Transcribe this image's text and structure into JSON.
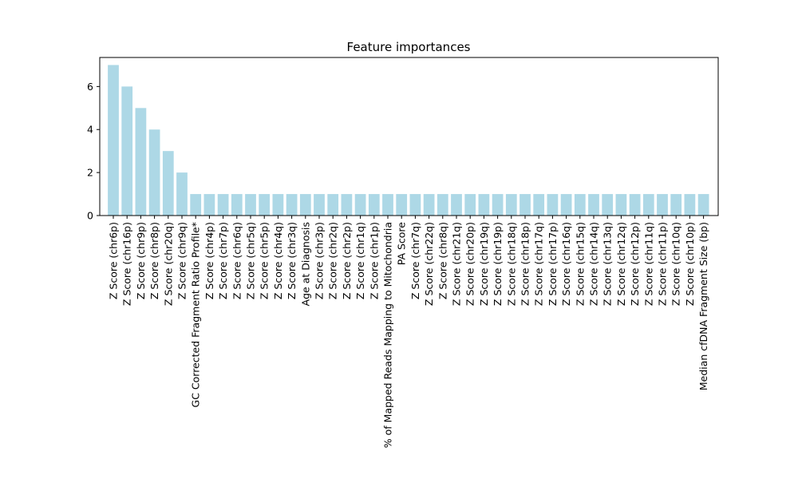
{
  "chart_data": {
    "type": "bar",
    "title": "Feature importances",
    "xlabel": "",
    "ylabel": "",
    "ylim": [
      0,
      7.35
    ],
    "yticks": [
      0,
      2,
      4,
      6
    ],
    "grid": false,
    "bar_color": "#add8e6",
    "categories": [
      "Z Score (chr6p)",
      "Z Score (chr16p)",
      "Z Score (chr9p)",
      "Z Score (chr8p)",
      "Z Score (chr20q)",
      "Z Score (chr9q)",
      "GC Corrected Fragment Ratio Profile*",
      "Z Score (chr4p)",
      "Z Score (chr7p)",
      "Z Score (chr6q)",
      "Z Score (chr5q)",
      "Z Score (chr5p)",
      "Z Score (chr4q)",
      "Z Score (chr3q)",
      "Age at Diagnosis",
      "Z Score (chr3p)",
      "Z Score (chr2q)",
      "Z Score (chr2p)",
      "Z Score (chr1q)",
      "Z Score (chr1p)",
      "% of Mapped Reads Mapping to Mitochondria",
      "PA Score",
      "Z Score (chr7q)",
      "Z Score (chr22q)",
      "Z Score (chr8q)",
      "Z Score (chr21q)",
      "Z Score (chr20p)",
      "Z Score (chr19q)",
      "Z Score (chr19p)",
      "Z Score (chr18q)",
      "Z Score (chr18p)",
      "Z Score (chr17q)",
      "Z Score (chr17p)",
      "Z Score (chr16q)",
      "Z Score (chr15q)",
      "Z Score (chr14q)",
      "Z Score (chr13q)",
      "Z Score (chr12q)",
      "Z Score (chr12p)",
      "Z Score (chr11q)",
      "Z Score (chr11p)",
      "Z Score (chr10q)",
      "Z Score (chr10p)",
      "Median cfDNA Fragment Size (bp)"
    ],
    "values": [
      7,
      6,
      5,
      4,
      3,
      2,
      1,
      1,
      1,
      1,
      1,
      1,
      1,
      1,
      1,
      1,
      1,
      1,
      1,
      1,
      1,
      1,
      1,
      1,
      1,
      1,
      1,
      1,
      1,
      1,
      1,
      1,
      1,
      1,
      1,
      1,
      1,
      1,
      1,
      1,
      1,
      1,
      1,
      1
    ]
  }
}
